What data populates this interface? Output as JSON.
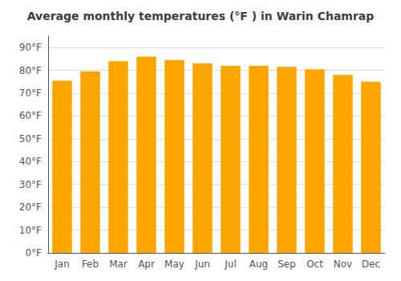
{
  "chart_data": {
    "type": "bar",
    "title": "Average monthly temperatures (°F ) in Warin Chamrap",
    "categories": [
      "Jan",
      "Feb",
      "Mar",
      "Apr",
      "May",
      "Jun",
      "Jul",
      "Aug",
      "Sep",
      "Oct",
      "Nov",
      "Dec"
    ],
    "values": [
      75.5,
      79.5,
      84.0,
      86.0,
      84.5,
      83.0,
      82.0,
      82.0,
      81.5,
      80.5,
      78.0,
      75.0
    ],
    "color": "#FFA500",
    "ylim": [
      0,
      95
    ],
    "yticks": [
      {
        "value": 0,
        "label": "0°F"
      },
      {
        "value": 10,
        "label": "10°F"
      },
      {
        "value": 20,
        "label": "20°F"
      },
      {
        "value": 30,
        "label": "30°F"
      },
      {
        "value": 40,
        "label": "40°F"
      },
      {
        "value": 50,
        "label": "50°F"
      },
      {
        "value": 60,
        "label": "60°F"
      },
      {
        "value": 70,
        "label": "70°F"
      },
      {
        "value": 80,
        "label": "80°F"
      },
      {
        "value": 90,
        "label": "90°F"
      }
    ],
    "grid": true
  }
}
